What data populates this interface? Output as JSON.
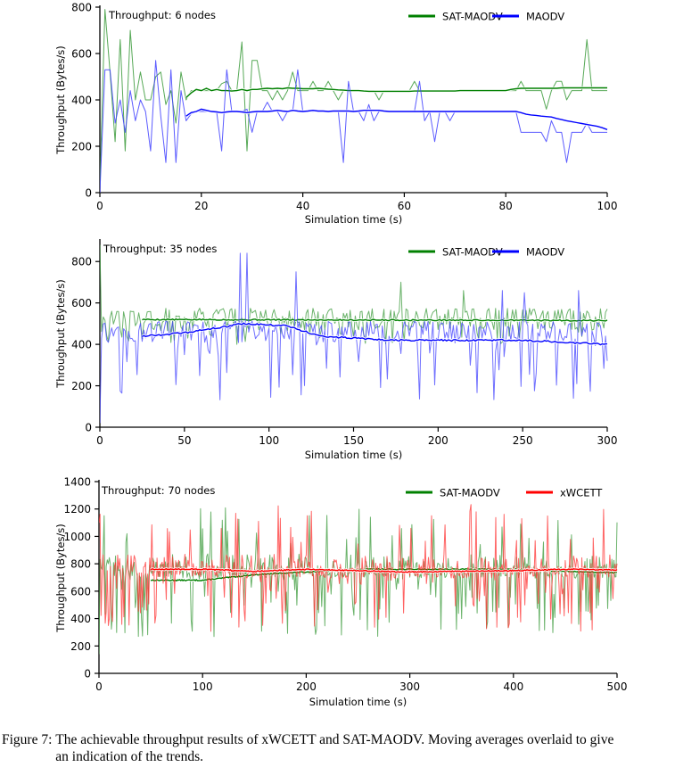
{
  "caption": {
    "label": "Figure 7:",
    "text": "The achievable throughput results of xWCETT and SAT-MAODV. Moving averages overlaid to give an indication of the trends."
  },
  "chart_data": [
    {
      "type": "line",
      "title": "Throughput: 6 nodes",
      "xlabel": "Simulation time (s)",
      "ylabel": "Throughput (Bytes/s)",
      "xlim": [
        0,
        100
      ],
      "ylim": [
        0,
        800
      ],
      "xticks": [
        "0",
        "20",
        "40",
        "60",
        "80",
        "100"
      ],
      "yticks": [
        "0",
        "200",
        "400",
        "600",
        "800"
      ],
      "legend": "top-right",
      "grid": false,
      "series": [
        {
          "name": "SAT-MAODV",
          "color": "#008000",
          "raw_color": "#3a9a3a",
          "x": [
            0,
            1,
            2,
            3,
            4,
            5,
            6,
            7,
            8,
            9,
            10,
            11,
            12,
            13,
            14,
            15,
            16,
            17,
            18,
            19,
            20,
            21,
            22,
            23,
            24,
            25,
            26,
            27,
            28,
            29,
            30,
            31,
            32,
            33,
            34,
            35,
            36,
            37,
            38,
            39,
            40,
            41,
            42,
            43,
            44,
            45,
            46,
            47,
            48,
            49,
            50,
            51,
            52,
            53,
            54,
            55,
            56,
            57,
            58,
            59,
            60,
            61,
            62,
            63,
            64,
            65,
            66,
            67,
            68,
            69,
            70,
            71,
            72,
            73,
            74,
            75,
            76,
            77,
            78,
            79,
            80,
            81,
            82,
            83,
            84,
            85,
            86,
            87,
            88,
            89,
            90,
            91,
            92,
            93,
            94,
            95,
            96,
            97,
            98,
            99,
            100
          ],
          "y": [
            30,
            790,
            520,
            220,
            660,
            180,
            700,
            400,
            520,
            400,
            400,
            500,
            520,
            380,
            440,
            300,
            520,
            400,
            440,
            440,
            440,
            440,
            440,
            440,
            470,
            480,
            440,
            440,
            650,
            180,
            570,
            570,
            440,
            440,
            400,
            440,
            400,
            440,
            520,
            440,
            440,
            440,
            480,
            440,
            440,
            480,
            440,
            400,
            440,
            440,
            440,
            440,
            440,
            440,
            440,
            400,
            440,
            440,
            440,
            440,
            440,
            440,
            480,
            440,
            440,
            440,
            440,
            440,
            440,
            440,
            440,
            440,
            440,
            440,
            440,
            440,
            440,
            440,
            440,
            440,
            440,
            440,
            440,
            480,
            440,
            440,
            440,
            440,
            360,
            440,
            480,
            480,
            400,
            440,
            440,
            440,
            660,
            440,
            440,
            440,
            440
          ],
          "moving_average": {
            "x_start": 17,
            "values": [
              410,
              430,
              445,
              440,
              450,
              440,
              445,
              440,
              440,
              438,
              440,
              445,
              440,
              445,
              445,
              448,
              450,
              448,
              450,
              448,
              452,
              450,
              450,
              448,
              448,
              448,
              450,
              448,
              446,
              445,
              443,
              442,
              440,
              440,
              440,
              438,
              437,
              437,
              437,
              437,
              437,
              437,
              437,
              437,
              437,
              438,
              438,
              438,
              438,
              438,
              438,
              438,
              438,
              438,
              440,
              440,
              440,
              440,
              440,
              440,
              440,
              440,
              440,
              440,
              445,
              448,
              450,
              450,
              450,
              450,
              450,
              450,
              450,
              450,
              452,
              452,
              452,
              452,
              452,
              452,
              452,
              452,
              452,
              452
            ]
          }
        },
        {
          "name": "MAODV",
          "color": "#0000ff",
          "raw_color": "#4040ff",
          "x": [
            0,
            1,
            2,
            3,
            4,
            5,
            6,
            7,
            8,
            9,
            10,
            11,
            12,
            13,
            14,
            15,
            16,
            17,
            18,
            19,
            20,
            21,
            22,
            23,
            24,
            25,
            26,
            27,
            28,
            29,
            30,
            31,
            32,
            33,
            34,
            35,
            36,
            37,
            38,
            39,
            40,
            41,
            42,
            43,
            44,
            45,
            46,
            47,
            48,
            49,
            50,
            51,
            52,
            53,
            54,
            55,
            56,
            57,
            58,
            59,
            60,
            61,
            62,
            63,
            64,
            65,
            66,
            67,
            68,
            69,
            70,
            71,
            72,
            73,
            74,
            75,
            76,
            77,
            78,
            79,
            80,
            81,
            82,
            83,
            84,
            85,
            86,
            87,
            88,
            89,
            90,
            91,
            92,
            93,
            94,
            95,
            96,
            97,
            98,
            99,
            100
          ],
          "y": [
            0,
            530,
            530,
            300,
            400,
            260,
            440,
            310,
            400,
            350,
            180,
            570,
            330,
            130,
            530,
            130,
            440,
            310,
            340,
            350,
            350,
            350,
            350,
            350,
            180,
            530,
            350,
            350,
            350,
            360,
            260,
            350,
            350,
            390,
            350,
            350,
            310,
            350,
            350,
            530,
            350,
            350,
            350,
            350,
            350,
            350,
            350,
            350,
            130,
            480,
            350,
            350,
            310,
            380,
            310,
            350,
            350,
            350,
            350,
            350,
            350,
            350,
            350,
            480,
            310,
            350,
            220,
            350,
            350,
            310,
            350,
            350,
            350,
            350,
            350,
            350,
            350,
            350,
            350,
            350,
            350,
            350,
            350,
            260,
            260,
            260,
            260,
            260,
            220,
            310,
            260,
            260,
            130,
            260,
            260,
            260,
            300,
            260,
            260,
            260,
            260
          ],
          "moving_average": {
            "x_start": 17,
            "values": [
              330,
              345,
              350,
              360,
              355,
              350,
              348,
              345,
              348,
              350,
              350,
              348,
              345,
              348,
              350,
              350,
              350,
              352,
              355,
              352,
              350,
              355,
              352,
              350,
              352,
              355,
              352,
              352,
              350,
              352,
              352,
              352,
              352,
              350,
              352,
              355,
              355,
              355,
              355,
              352,
              350,
              350,
              350,
              350,
              350,
              350,
              350,
              350,
              350,
              350,
              350,
              350,
              350,
              350,
              350,
              350,
              350,
              350,
              350,
              350,
              350,
              350,
              350,
              350,
              350,
              350,
              345,
              338,
              335,
              333,
              330,
              328,
              326,
              320,
              315,
              310,
              306,
              302,
              298,
              294,
              290,
              286,
              280,
              272
            ]
          }
        }
      ]
    },
    {
      "type": "line",
      "title": "Throughput: 35 nodes",
      "xlabel": "Simulation time (s)",
      "ylabel": "Throughput (Bytes/s)",
      "xlim": [
        0,
        300
      ],
      "ylim": [
        0,
        900
      ],
      "xticks": [
        "0",
        "50",
        "100",
        "150",
        "200",
        "250",
        "300"
      ],
      "yticks": [
        "0",
        "200",
        "400",
        "600",
        "800"
      ],
      "legend": "top-right",
      "grid": false,
      "series": [
        {
          "name": "SAT-MAODV",
          "color": "#008000",
          "raw_color": "#3a9a3a",
          "mean": 515,
          "spread_hi": 620,
          "spread_lo": 400,
          "peaks": [
            [
              0,
              880
            ],
            [
              178,
              700
            ],
            [
              215,
              660
            ]
          ],
          "moving_average_range": [
            520,
            515
          ]
        },
        {
          "name": "MAODV",
          "color": "#0000ff",
          "raw_color": "#4040ff",
          "mean": 450,
          "spread_hi": 570,
          "spread_lo": 130,
          "peaks": [
            [
              83,
              840
            ],
            [
              87,
              840
            ],
            [
              116,
              750
            ],
            [
              238,
              660
            ],
            [
              251,
              650
            ],
            [
              283,
              660
            ]
          ],
          "moving_average_points": [
            [
              25,
              440
            ],
            [
              50,
              455
            ],
            [
              85,
              500
            ],
            [
              110,
              490
            ],
            [
              130,
              440
            ],
            [
              170,
              420
            ],
            [
              250,
              420
            ],
            [
              300,
              400
            ]
          ]
        }
      ]
    },
    {
      "type": "line",
      "title": "Throughput: 70 nodes",
      "xlabel": "Simulation time (s)",
      "ylabel": "Throughput (Bytes/s)",
      "xlim": [
        0,
        500
      ],
      "ylim": [
        0,
        1400
      ],
      "xticks": [
        "0",
        "100",
        "200",
        "300",
        "400",
        "500"
      ],
      "yticks": [
        "0",
        "200",
        "400",
        "600",
        "800",
        "1000",
        "1200",
        "1400"
      ],
      "legend": "top-right",
      "grid": false,
      "series": [
        {
          "name": "SAT-MAODV",
          "color": "#008000",
          "raw_color": "#3a9a3a",
          "mean": 740,
          "spread_hi": 1230,
          "spread_lo": 260,
          "moving_average_points": [
            [
              50,
              680
            ],
            [
              100,
              680
            ],
            [
              150,
              720
            ],
            [
              200,
              740
            ],
            [
              260,
              760
            ],
            [
              300,
              760
            ],
            [
              400,
              760
            ],
            [
              450,
              745
            ],
            [
              500,
              735
            ]
          ]
        },
        {
          "name": "xWCETT",
          "color": "#ff0000",
          "raw_color": "#ff3030",
          "mean": 740,
          "spread_hi": 1240,
          "spread_lo": 300,
          "moving_average_points": [
            [
              50,
              760
            ],
            [
              100,
              760
            ],
            [
              150,
              745
            ],
            [
              200,
              760
            ],
            [
              300,
              740
            ],
            [
              400,
              750
            ],
            [
              450,
              760
            ],
            [
              500,
              755
            ]
          ]
        }
      ]
    }
  ]
}
